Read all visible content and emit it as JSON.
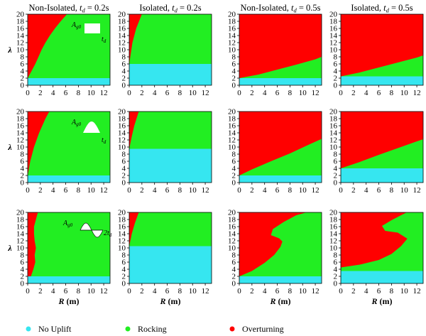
{
  "legend": {
    "items": [
      {
        "label": "No Uplift",
        "color": "#36e6f0"
      },
      {
        "label": "Rocking",
        "color": "#22ee22"
      },
      {
        "label": "Overturning",
        "color": "#ff0000"
      }
    ],
    "placement": "bottom"
  },
  "colors": {
    "no_uplift": "#36e6f0",
    "rocking": "#22ee22",
    "overturning": "#ff0000"
  },
  "chart_data": [
    {
      "type": "heatmap",
      "row": 1,
      "column": 1,
      "title": "Non-Isolated, t_d = 0.2s",
      "title_parts": {
        "prefix": "Non-Isolated, ",
        "var": "t",
        "sub": "d",
        "suffix": " = 0.2s"
      },
      "pulse": "rectangular",
      "pulse_labels": {
        "amp": "A",
        "amp_sub": "g0",
        "dur": "t",
        "dur_sub": "d"
      },
      "xlabel": "",
      "ylabel": "λ",
      "xlim": [
        0,
        13
      ],
      "ylim": [
        0,
        20
      ],
      "xticks": [
        0,
        2,
        4,
        6,
        8,
        10,
        12
      ],
      "yticks": [
        0,
        2,
        4,
        6,
        8,
        10,
        12,
        14,
        16,
        18,
        20
      ],
      "no_uplift_max_lambda": 2,
      "overturning_boundary": {
        "lambda": [
          2,
          4,
          6,
          8,
          10,
          12,
          14,
          16,
          18,
          20
        ],
        "R": [
          0,
          0.6,
          1.2,
          1.7,
          2.2,
          2.8,
          3.5,
          4.3,
          5.2,
          6.2
        ]
      }
    },
    {
      "type": "heatmap",
      "row": 1,
      "column": 2,
      "title": "Isolated, t_d = 0.2s",
      "title_parts": {
        "prefix": "Isolated, ",
        "var": "t",
        "sub": "d",
        "suffix": " = 0.2s"
      },
      "xlabel": "",
      "ylabel": "",
      "xlim": [
        0,
        13
      ],
      "ylim": [
        0,
        20
      ],
      "xticks": [
        0,
        2,
        4,
        6,
        8,
        10,
        12
      ],
      "yticks": [
        0,
        2,
        4,
        6,
        8,
        10,
        12,
        14,
        16,
        18,
        20
      ],
      "no_uplift_max_lambda": 6,
      "overturning_boundary": {
        "lambda": [
          6,
          12,
          16,
          20
        ],
        "R": [
          0,
          0.5,
          1.1,
          2.0
        ]
      }
    },
    {
      "type": "heatmap",
      "row": 1,
      "column": 3,
      "title": "Non-Isolated, t_d = 0.5s",
      "title_parts": {
        "prefix": "Non-Isolated, ",
        "var": "t",
        "sub": "d",
        "suffix": " = 0.5s"
      },
      "xlabel": "",
      "ylabel": "",
      "xlim": [
        0,
        13
      ],
      "ylim": [
        0,
        20
      ],
      "xticks": [
        0,
        2,
        4,
        6,
        8,
        10,
        12
      ],
      "yticks": [
        0,
        2,
        4,
        6,
        8,
        10,
        12,
        14,
        16,
        18,
        20
      ],
      "no_uplift_max_lambda": 2,
      "overturning_lower_boundary": {
        "R": [
          0,
          3,
          6,
          9,
          12,
          13
        ],
        "lambda": [
          2,
          3.0,
          4.4,
          5.8,
          7.3,
          8.0
        ]
      }
    },
    {
      "type": "heatmap",
      "row": 1,
      "column": 4,
      "title": "Isolated, t_d = 0.5s",
      "title_parts": {
        "prefix": "Isolated, ",
        "var": "t",
        "sub": "d",
        "suffix": " = 0.5s"
      },
      "xlabel": "",
      "ylabel": "",
      "xlim": [
        0,
        13
      ],
      "ylim": [
        0,
        20
      ],
      "xticks": [
        0,
        2,
        4,
        6,
        8,
        10,
        12
      ],
      "yticks": [
        0,
        2,
        4,
        6,
        8,
        10,
        12,
        14,
        16,
        18,
        20
      ],
      "no_uplift_max_lambda": 2.5,
      "overturning_lower_boundary": {
        "R": [
          0,
          3,
          6,
          9,
          12,
          13
        ],
        "lambda": [
          2.5,
          3.6,
          5.0,
          6.4,
          7.8,
          8.4
        ]
      }
    },
    {
      "type": "heatmap",
      "row": 2,
      "column": 1,
      "pulse": "half-sine",
      "pulse_labels": {
        "amp": "A",
        "amp_sub": "g0",
        "dur": "t",
        "dur_sub": "d"
      },
      "xlabel": "",
      "ylabel": "λ",
      "xlim": [
        0,
        13
      ],
      "ylim": [
        0,
        20
      ],
      "xticks": [
        0,
        2,
        4,
        6,
        8,
        10,
        12
      ],
      "yticks": [
        0,
        2,
        4,
        6,
        8,
        10,
        12,
        14,
        16,
        18,
        20
      ],
      "no_uplift_max_lambda": 2,
      "overturning_boundary": {
        "lambda": [
          2,
          6,
          10,
          14,
          18,
          20
        ],
        "R": [
          0,
          0.4,
          1.0,
          1.8,
          2.8,
          3.4
        ]
      }
    },
    {
      "type": "heatmap",
      "row": 2,
      "column": 2,
      "xlabel": "",
      "ylabel": "",
      "xlim": [
        0,
        13
      ],
      "ylim": [
        0,
        20
      ],
      "xticks": [
        0,
        2,
        4,
        6,
        8,
        10,
        12
      ],
      "yticks": [
        0,
        2,
        4,
        6,
        8,
        10,
        12,
        14,
        16,
        18,
        20
      ],
      "no_uplift_max_lambda": 9.5,
      "overturning_boundary": {
        "lambda": [
          9.5,
          13,
          16,
          20
        ],
        "R": [
          0,
          0.4,
          0.8,
          1.5
        ]
      }
    },
    {
      "type": "heatmap",
      "row": 2,
      "column": 3,
      "xlabel": "",
      "ylabel": "",
      "xlim": [
        0,
        13
      ],
      "ylim": [
        0,
        20
      ],
      "xticks": [
        0,
        2,
        4,
        6,
        8,
        10,
        12
      ],
      "yticks": [
        0,
        2,
        4,
        6,
        8,
        10,
        12,
        14,
        16,
        18,
        20
      ],
      "no_uplift_max_lambda": 2,
      "overturning_lower_boundary": {
        "R": [
          0,
          2,
          5,
          8,
          11,
          13
        ],
        "lambda": [
          2,
          3.7,
          6.0,
          8.2,
          10.7,
          12.3
        ]
      }
    },
    {
      "type": "heatmap",
      "row": 2,
      "column": 4,
      "xlabel": "",
      "ylabel": "",
      "xlim": [
        0,
        13
      ],
      "ylim": [
        0,
        20
      ],
      "xticks": [
        0,
        2,
        4,
        6,
        8,
        10,
        12
      ],
      "yticks": [
        0,
        2,
        4,
        6,
        8,
        10,
        12,
        14,
        16,
        18,
        20
      ],
      "no_uplift_max_lambda": 4,
      "overturning_lower_boundary": {
        "R": [
          0,
          3,
          6,
          9,
          12,
          13
        ],
        "lambda": [
          4,
          5.8,
          7.8,
          9.7,
          11.6,
          12.2
        ]
      }
    },
    {
      "type": "heatmap",
      "row": 3,
      "column": 1,
      "pulse": "full-sine",
      "pulse_labels": {
        "amp": "A",
        "amp_sub": "g0",
        "dur": "2t",
        "dur_sub": "d"
      },
      "xlabel": "R (m)",
      "ylabel": "λ",
      "xlim": [
        0,
        13
      ],
      "ylim": [
        0,
        20
      ],
      "xticks": [
        0,
        2,
        4,
        6,
        8,
        10,
        12
      ],
      "yticks": [
        0,
        2,
        4,
        6,
        8,
        10,
        12,
        14,
        16,
        18,
        20
      ],
      "no_uplift_max_lambda": 2,
      "overturning_boundary": {
        "lambda": [
          2,
          4,
          6,
          8,
          10,
          12,
          14,
          16,
          18,
          20
        ],
        "R": [
          0.5,
          0.9,
          1.2,
          1.1,
          1.3,
          1.1,
          1.0,
          1.0,
          1.3,
          1.6
        ]
      }
    },
    {
      "type": "heatmap",
      "row": 3,
      "column": 2,
      "xlabel": "R (m)",
      "ylabel": "",
      "xlim": [
        0,
        13
      ],
      "ylim": [
        0,
        20
      ],
      "xticks": [
        0,
        2,
        4,
        6,
        8,
        10,
        12
      ],
      "yticks": [
        0,
        2,
        4,
        6,
        8,
        10,
        12,
        14,
        16,
        18,
        20
      ],
      "no_uplift_max_lambda": 10.5,
      "overturning_boundary": {
        "lambda": [
          10.5,
          14,
          17,
          20
        ],
        "R": [
          0,
          0.4,
          0.9,
          1.5
        ]
      }
    },
    {
      "type": "heatmap",
      "row": 3,
      "column": 3,
      "xlabel": "R (m)",
      "ylabel": "",
      "xlim": [
        0,
        13
      ],
      "ylim": [
        0,
        20
      ],
      "xticks": [
        0,
        2,
        4,
        6,
        8,
        10,
        12
      ],
      "yticks": [
        0,
        2,
        4,
        6,
        8,
        10,
        12,
        14,
        16,
        18,
        20
      ],
      "no_uplift_max_lambda": 2,
      "overturning_region": {
        "R": [
          0,
          2,
          4,
          5.5,
          6.5,
          6.8,
          6.3,
          5.0,
          5.3,
          7.0,
          9.0,
          10.6,
          0
        ],
        "lambda": [
          2,
          3.5,
          5.8,
          8.0,
          10.3,
          11.8,
          12.7,
          13.6,
          15.3,
          17.3,
          19.2,
          20,
          20
        ]
      }
    },
    {
      "type": "heatmap",
      "row": 3,
      "column": 4,
      "xlabel": "R (m)",
      "ylabel": "",
      "xlim": [
        0,
        13
      ],
      "ylim": [
        0,
        20
      ],
      "xticks": [
        0,
        2,
        4,
        6,
        8,
        10,
        12
      ],
      "yticks": [
        0,
        2,
        4,
        6,
        8,
        10,
        12,
        14,
        16,
        18,
        20
      ],
      "no_uplift_max_lambda": 3.5,
      "overturning_region": {
        "R": [
          0,
          3,
          6,
          8,
          9.5,
          10.5,
          9.0,
          7.0,
          6.5,
          8.0,
          9.5,
          10.4,
          0
        ],
        "lambda": [
          4.5,
          5.3,
          6.6,
          8.3,
          10.5,
          12.6,
          14.3,
          14.8,
          16.2,
          17.8,
          19.2,
          20,
          20
        ]
      }
    }
  ]
}
